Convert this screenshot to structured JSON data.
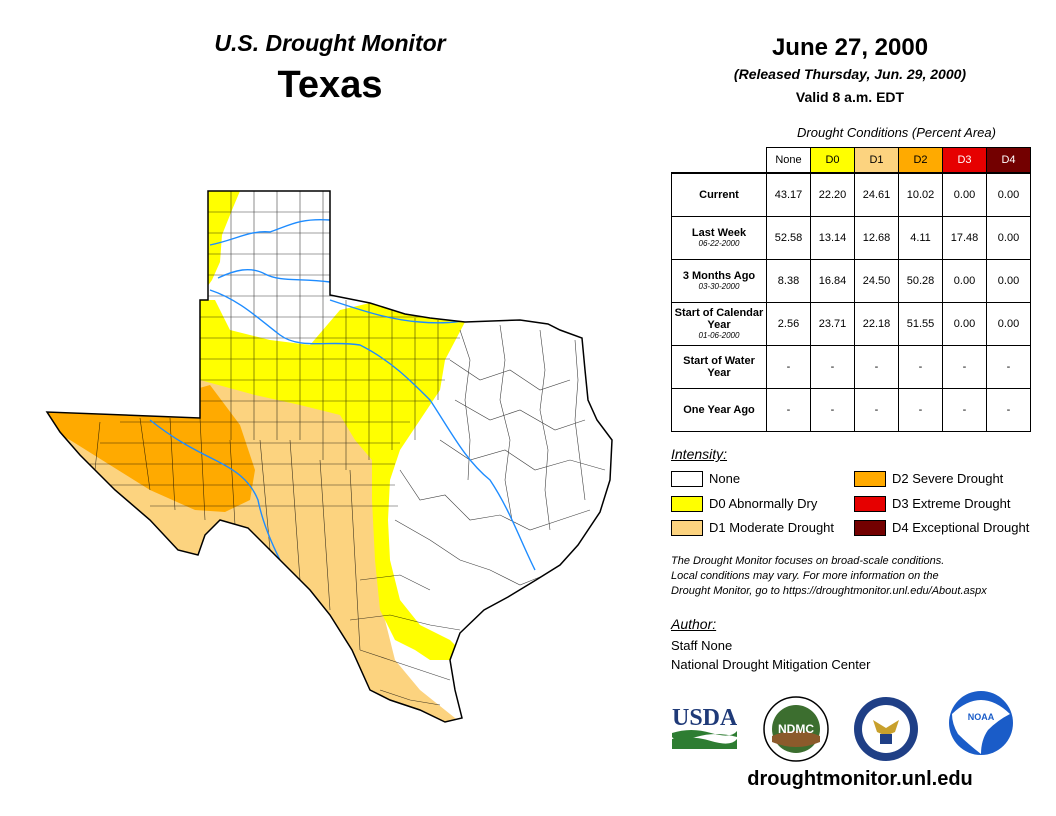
{
  "header": {
    "brand": "U.S. Drought Monitor",
    "state": "Texas",
    "date": "June 27, 2000",
    "released": "(Released Thursday, Jun. 29, 2000)",
    "valid": "Valid 8 a.m. EDT"
  },
  "table": {
    "caption": "Drought Conditions (Percent Area)",
    "columns": [
      "None",
      "D0",
      "D1",
      "D2",
      "D3",
      "D4"
    ],
    "rows": [
      {
        "label": "Current",
        "sub": "",
        "values": [
          "43.17",
          "22.20",
          "24.61",
          "10.02",
          "0.00",
          "0.00"
        ]
      },
      {
        "label": "Last Week",
        "sub": "06-22-2000",
        "values": [
          "52.58",
          "13.14",
          "12.68",
          "4.11",
          "17.48",
          "0.00"
        ]
      },
      {
        "label": "3 Months Ago",
        "sub": "03-30-2000",
        "values": [
          "8.38",
          "16.84",
          "24.50",
          "50.28",
          "0.00",
          "0.00"
        ]
      },
      {
        "label": "Start of Calendar Year",
        "sub": "01-06-2000",
        "values": [
          "2.56",
          "23.71",
          "22.18",
          "51.55",
          "0.00",
          "0.00"
        ]
      },
      {
        "label": "Start of Water Year",
        "sub": "",
        "values": [
          "-",
          "-",
          "-",
          "-",
          "-",
          "-"
        ]
      },
      {
        "label": "One Year Ago",
        "sub": "",
        "values": [
          "-",
          "-",
          "-",
          "-",
          "-",
          "-"
        ]
      }
    ]
  },
  "legend": {
    "title": "Intensity:",
    "items": [
      {
        "label": "None",
        "color": "#ffffff"
      },
      {
        "label": "D0 Abnormally Dry",
        "color": "#ffff00"
      },
      {
        "label": "D1 Moderate Drought",
        "color": "#fcd37f"
      },
      {
        "label": "D2 Severe Drought",
        "color": "#ffaa00"
      },
      {
        "label": "D3 Extreme Drought",
        "color": "#e60000"
      },
      {
        "label": "D4 Exceptional Drought",
        "color": "#730000"
      }
    ]
  },
  "note": {
    "line1": "The Drought Monitor focuses on broad-scale conditions.",
    "line2": "Local conditions may vary. For more information on the",
    "line3": "Drought Monitor, go to https://droughtmonitor.unl.edu/About.aspx"
  },
  "author": {
    "label": "Author:",
    "name": "Staff None",
    "org": "National Drought Mitigation Center"
  },
  "logos": {
    "usda": "USDA",
    "ndmc": "NDMC",
    "noaa": "NOAA"
  },
  "website": "droughtmonitor.unl.edu"
}
